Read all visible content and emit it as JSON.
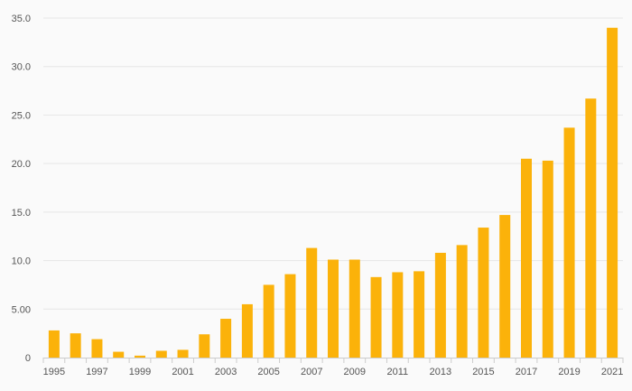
{
  "chart_data": {
    "type": "bar",
    "title": "",
    "xlabel": "",
    "ylabel": "",
    "categories": [
      "1995",
      "1996",
      "1997",
      "1998",
      "1999",
      "2000",
      "2001",
      "2002",
      "2003",
      "2004",
      "2005",
      "2006",
      "2007",
      "2008",
      "2009",
      "2010",
      "2011",
      "2012",
      "2013",
      "2014",
      "2015",
      "2016",
      "2017",
      "2018",
      "2019",
      "2020",
      "2021"
    ],
    "values": [
      2.8,
      2.5,
      1.9,
      0.6,
      0.2,
      0.7,
      0.8,
      2.4,
      4.0,
      5.5,
      7.5,
      8.6,
      11.3,
      10.1,
      10.1,
      8.3,
      8.8,
      8.9,
      10.8,
      11.6,
      13.4,
      14.7,
      20.5,
      20.3,
      23.7,
      26.7,
      34.0
    ],
    "ylim": [
      0,
      35
    ],
    "y_ticks": [
      "0",
      "5.00",
      "10.0",
      "15.0",
      "20.0",
      "25.0",
      "30.0",
      "35.0"
    ],
    "x_tick_labels": [
      "1995",
      "1997",
      "1999",
      "2001",
      "2003",
      "2005",
      "2007",
      "2009",
      "2011",
      "2013",
      "2015",
      "2017",
      "2019",
      "2021"
    ],
    "grid": true,
    "colors": {
      "bar": "#fbb20a",
      "grid": "#e6e6e6",
      "axis": "#cccccc",
      "background": "#fafafa"
    }
  }
}
